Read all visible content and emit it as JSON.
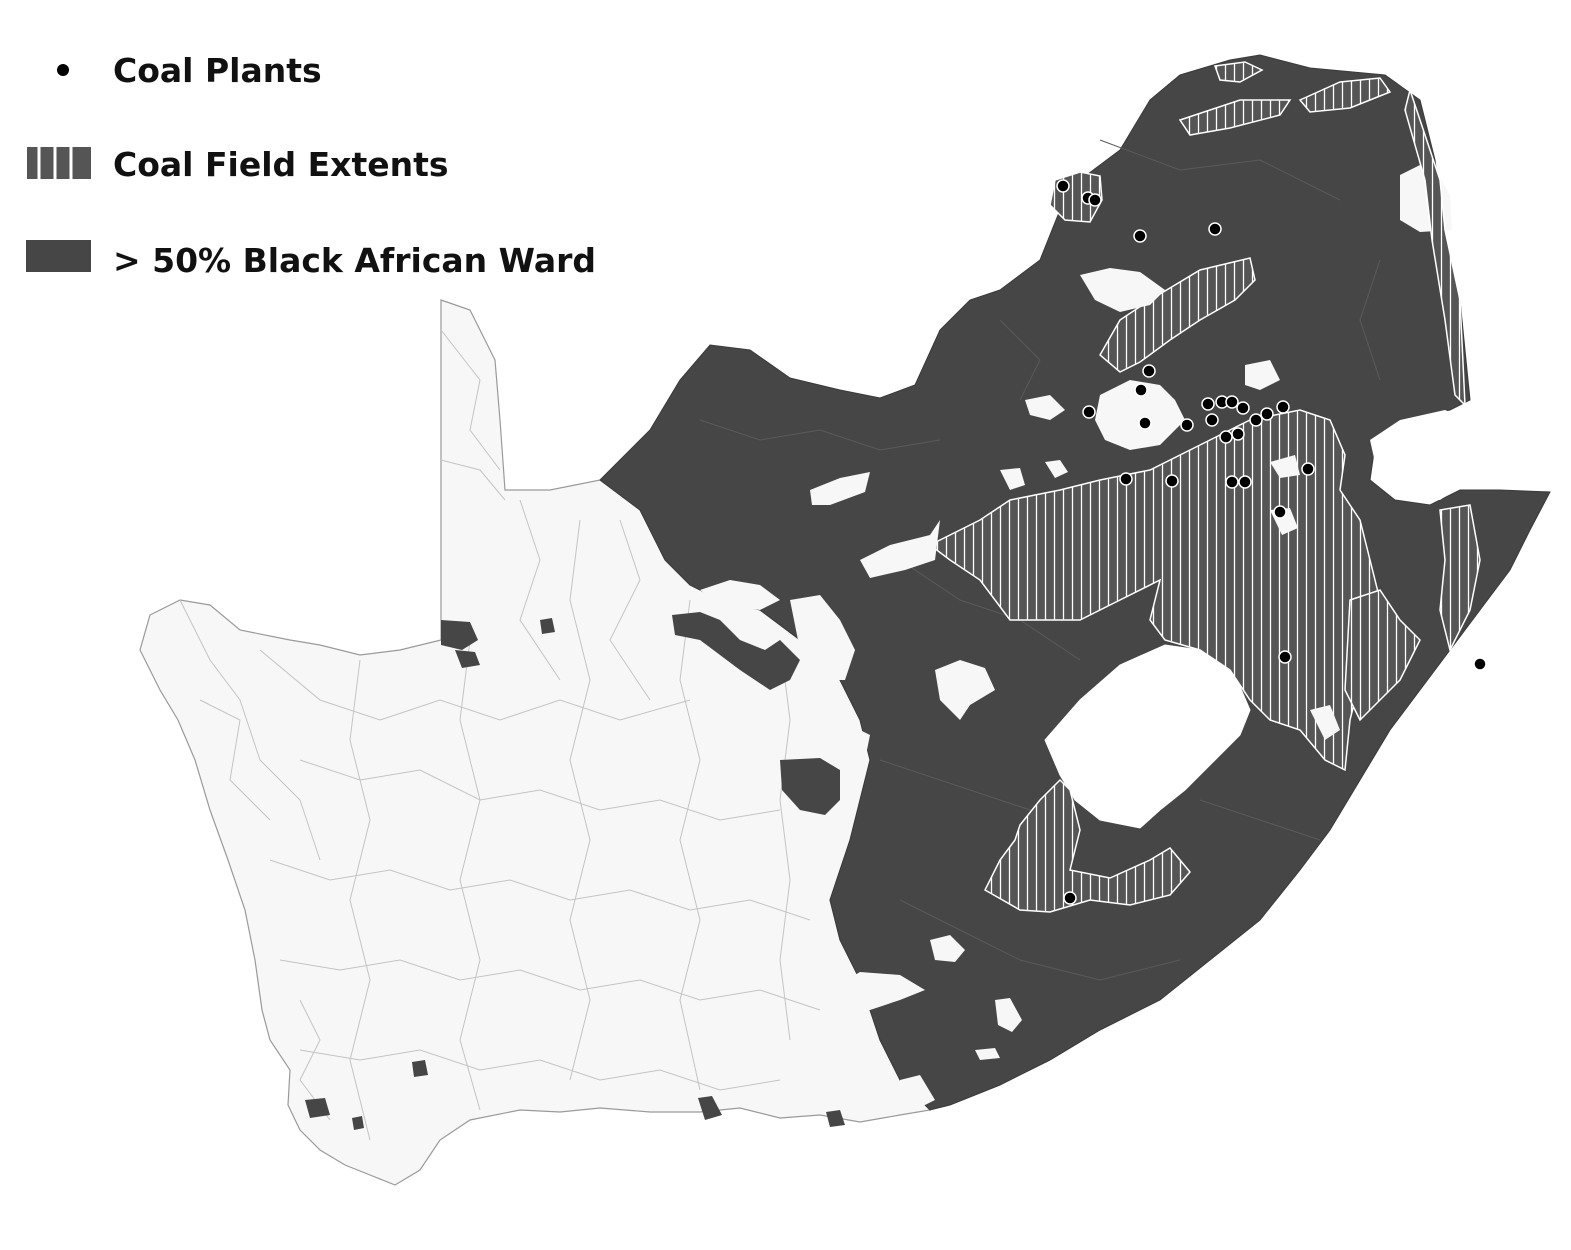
{
  "legend": {
    "items": [
      {
        "label": "Coal Plants",
        "icon": "dot-icon",
        "color": "#000000"
      },
      {
        "label": "Coal Field Extents",
        "icon": "hatch-icon",
        "color": "#555555"
      },
      {
        "label": "> 50% Black African Ward",
        "icon": "fill-swatch-icon",
        "color": "#464646"
      }
    ]
  },
  "map": {
    "region": "South Africa wards",
    "colors": {
      "majority_ward": "#464646",
      "other_ward": "#f7f7f7",
      "ward_border": "#bdbdbd",
      "coal_field_hatch": "#ffffff",
      "coal_plant": "#000000"
    }
  }
}
